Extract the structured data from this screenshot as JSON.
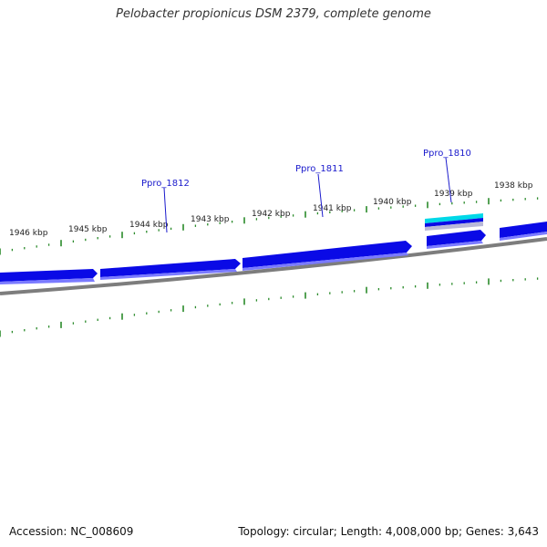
{
  "title": "Pelobacter propionicus DSM 2379, complete genome",
  "footer": {
    "accession": "Accession: NC_008609",
    "summary": "Topology: circular; Length: 4,008,000 bp; Genes: 3,643"
  },
  "scale_labels": [
    "1946 kbp",
    "1945 kbp",
    "1944 kbp",
    "1943 kbp",
    "1942 kbp",
    "1941 kbp",
    "1940 kbp",
    "1939 kbp",
    "1938 kbp"
  ],
  "gene_labels": [
    "Ppro_1812",
    "Ppro_1811",
    "Ppro_1810"
  ],
  "colors": {
    "gene": "#0a0ae6",
    "gene_shadow": "#7a7aff",
    "selected_gene": "#00d8e8",
    "backbone": "#7d7d7d",
    "tick": "#2a8a2a",
    "label_line": "#1a1acc",
    "label_text": "#1a1acc"
  }
}
